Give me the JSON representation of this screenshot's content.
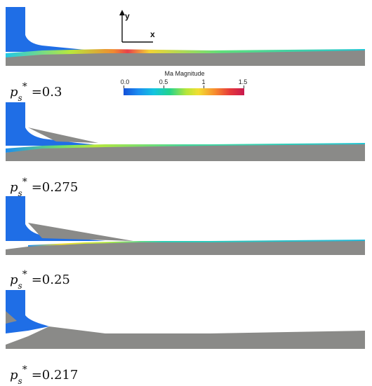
{
  "legend": {
    "title": "Ma Magnitude",
    "ticks": [
      "0.0",
      "0.5",
      "1",
      "1.5"
    ]
  },
  "axes": {
    "x_label": "x",
    "y_label": "y"
  },
  "panels": [
    {
      "symbol": "p",
      "sub": "s",
      "sup": "*",
      "value": "=0.3"
    },
    {
      "symbol": "p",
      "sub": "s",
      "sup": "*",
      "value": "=0.275"
    },
    {
      "symbol": "p",
      "sub": "s",
      "sup": "*",
      "value": "=0.25"
    },
    {
      "symbol": "p",
      "sub": "s",
      "sup": "*",
      "value": "=0.217"
    }
  ],
  "colors": {
    "wall": "#8a8a88",
    "subsonic": "#1f6ee6",
    "sonic": "#2fd4a0",
    "supersonic": "#e23a3a"
  }
}
